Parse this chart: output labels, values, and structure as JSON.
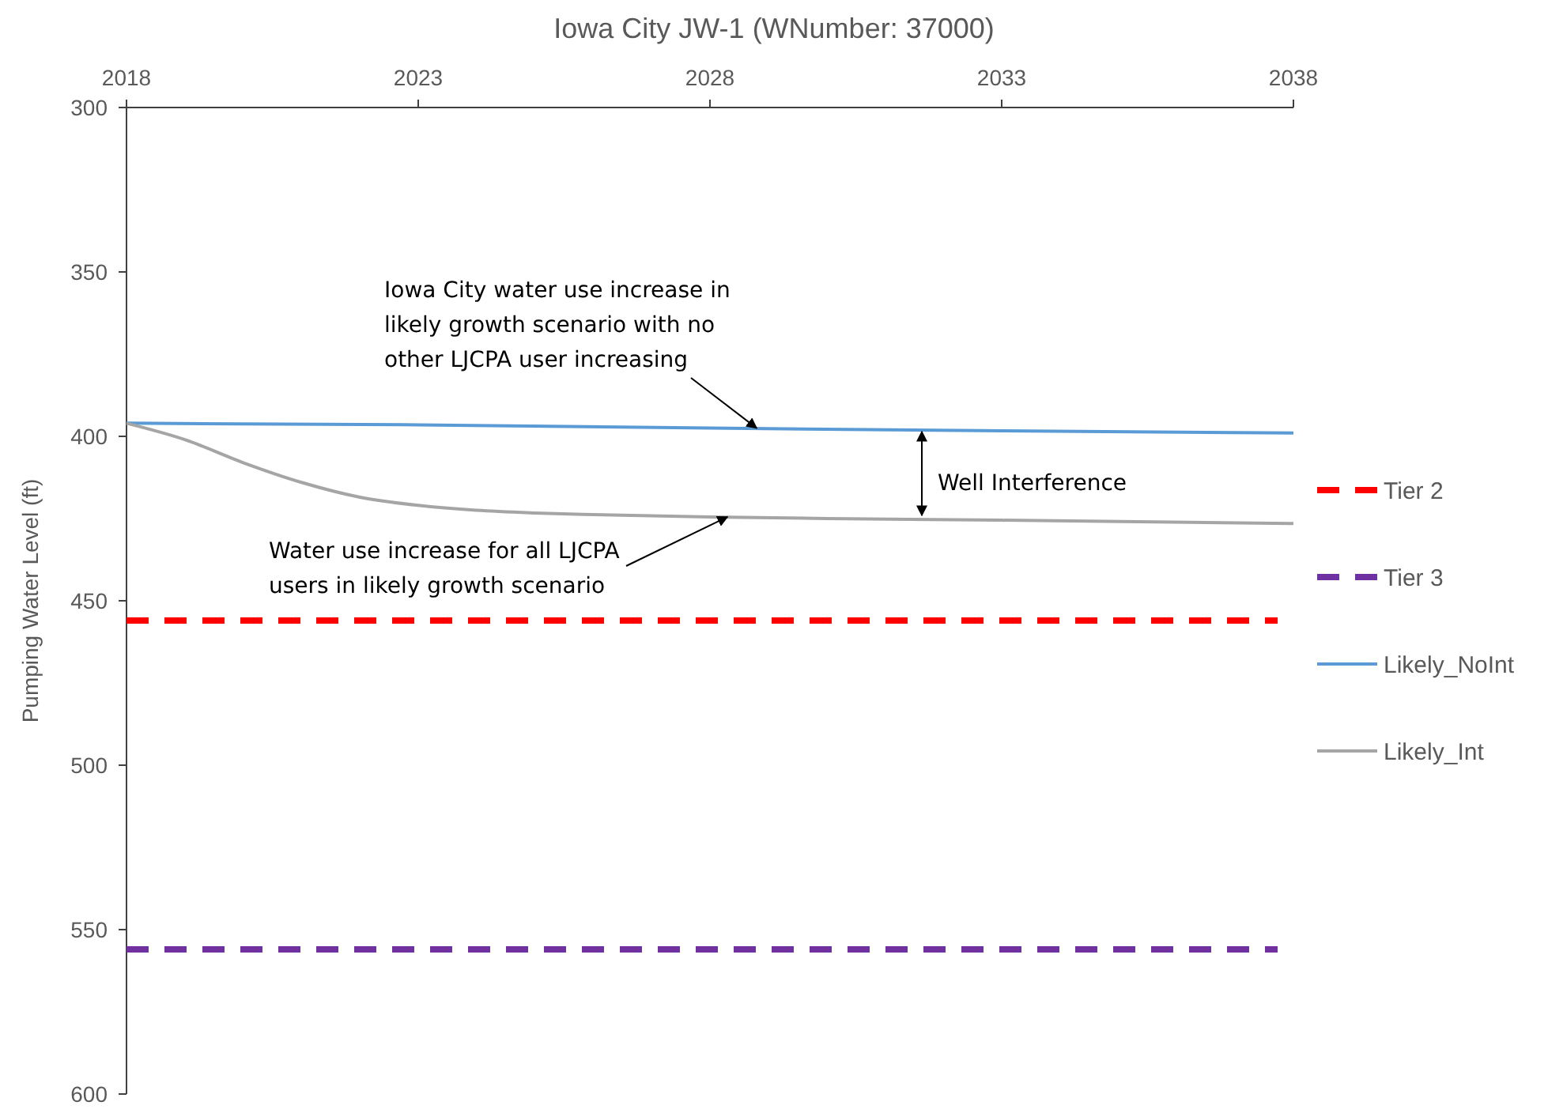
{
  "chart_data": {
    "type": "line",
    "title": "Iowa City JW-1 (WNumber: 37000)",
    "ylabel": "Pumping Water Level (ft)",
    "xlim": [
      2018,
      2038
    ],
    "xticks": [
      2018,
      2023,
      2028,
      2033,
      2038
    ],
    "ylim": [
      600,
      300
    ],
    "yticks": [
      300,
      350,
      400,
      450,
      500,
      550,
      600
    ],
    "grid": false,
    "legend": "right",
    "marker": "none",
    "line_style": "solid",
    "series": [
      {
        "name": "Likely_NoInt",
        "color": "#5b9bd5",
        "x": [
          2018,
          2023,
          2028,
          2033,
          2038
        ],
        "values": [
          396,
          396.5,
          397.5,
          398.3,
          399
        ]
      },
      {
        "name": "Likely_Int",
        "color": "#a5a5a5",
        "x": [
          2018,
          2019,
          2020,
          2021,
          2022,
          2023,
          2024,
          2025,
          2026,
          2028,
          2030,
          2033,
          2038
        ],
        "values": [
          396,
          401,
          408,
          414,
          418.5,
          421,
          422.5,
          423.3,
          423.8,
          424.5,
          425,
          425.5,
          426.5
        ]
      }
    ],
    "ref_lines": [
      {
        "axis": "y",
        "value": 456,
        "label": "Tier 2",
        "color": "#ff0000",
        "line_style": "dashed"
      },
      {
        "axis": "y",
        "value": 556,
        "label": "Tier 3",
        "color": "#7030a0",
        "line_style": "dashed"
      }
    ],
    "annotations": [
      {
        "text": "Iowa City water use increase in\nlikely growth scenario with no\nother LJCPA user increasing",
        "x": 2028.8,
        "y": 397.5
      },
      "Well Interference",
      {
        "text": "Water use increase for all LJCPA\nusers in likely growth scenario",
        "x": 2028.3,
        "y": 424.5
      }
    ]
  }
}
